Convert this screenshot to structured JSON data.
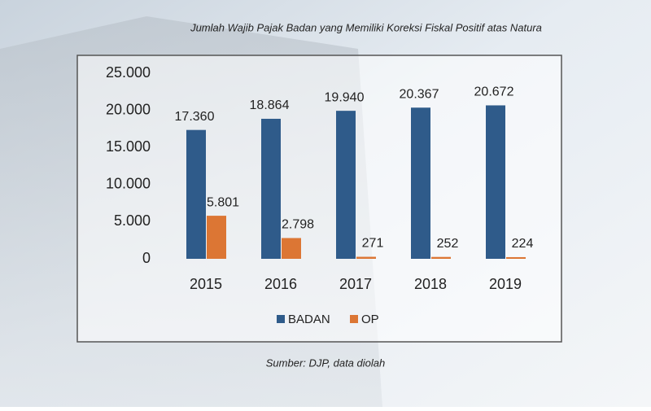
{
  "chart_data": {
    "type": "bar",
    "title": "Jumlah Wajib Pajak Badan yang Memiliki Koreksi Fiskal Positif atas Natura",
    "source": "Sumber: DJP, data diolah",
    "categories": [
      "2015",
      "2016",
      "2017",
      "2018",
      "2019"
    ],
    "series": [
      {
        "name": "BADAN",
        "color": "#2f5b8a",
        "values": [
          17360,
          18864,
          19940,
          20367,
          20672
        ],
        "value_labels": [
          "17.360",
          "18.864",
          "19.940",
          "20.367",
          "20.672"
        ]
      },
      {
        "name": "OP",
        "color": "#dc7634",
        "values": [
          5801,
          2798,
          271,
          252,
          224
        ],
        "value_labels": [
          "5.801",
          "2.798",
          "271",
          "252",
          "224"
        ]
      }
    ],
    "ylim": [
      0,
      25000
    ],
    "yticks": [
      0,
      {
        "value": 5000,
        "label": "5.000"
      },
      {
        "value": 10000,
        "label": "10.000"
      },
      {
        "value": 15000,
        "label": "15.000"
      },
      {
        "value": 20000,
        "label": "20.000"
      },
      {
        "value": 25000,
        "label": "25.000"
      }
    ],
    "grid": false,
    "legend": "bottom"
  }
}
